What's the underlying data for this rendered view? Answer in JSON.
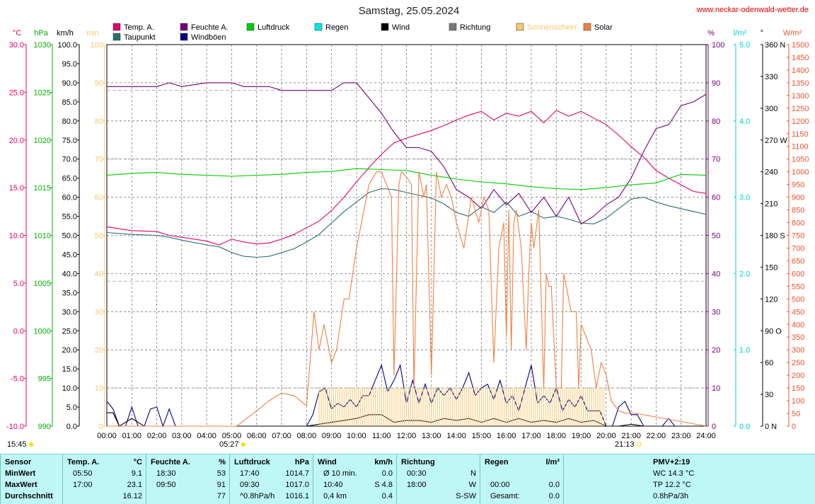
{
  "title": "Samstag, 25.05.2024",
  "website": "www.neckar-odenwald-wetter.de",
  "time_labels": {
    "now": "15:45",
    "sunrise": "05:27",
    "sunset": "21:13"
  },
  "colors": {
    "temp": "#e0006e",
    "dew": "#2a6d6d",
    "hum": "#770077",
    "gust": "#00008b",
    "press": "#00cc00",
    "rain": "#00e6e6",
    "wind": "#000000",
    "dir": "#777777",
    "sun": "#f5c870",
    "solar": "#f08040",
    "min": "#f5c870"
  },
  "legend": [
    {
      "label": "Temp. A.",
      "color": "#e0006e"
    },
    {
      "label": "Taupunkt",
      "color": "#2a6d6d"
    },
    {
      "label": "Feuchte A.",
      "color": "#770077"
    },
    {
      "label": "Windböen",
      "color": "#00008b"
    },
    {
      "label": "Luftdruck",
      "color": "#00cc00"
    },
    {
      "label": "Regen",
      "color": "#00e6e6"
    },
    {
      "label": "Wind",
      "color": "#000000"
    },
    {
      "label": "Richtung",
      "color": "#777777"
    },
    {
      "label": "Sonnenschein",
      "color": "#f5c870"
    },
    {
      "label": "Solar",
      "color": "#f08040"
    }
  ],
  "chart_data": {
    "type": "line",
    "title": "Samstag, 25.05.2024",
    "x_ticks": [
      "00:00",
      "01:00",
      "02:00",
      "03:00",
      "04:00",
      "05:00",
      "06:00",
      "07:00",
      "08:00",
      "09:00",
      "10:00",
      "11:00",
      "12:00",
      "13:00",
      "14:00",
      "15:00",
      "16:00",
      "17:00",
      "18:00",
      "19:00",
      "20:00",
      "21:00",
      "22:00",
      "23:00",
      "24:00"
    ],
    "xlim": [
      0,
      24
    ],
    "axes": {
      "temp": {
        "unit": "°C",
        "range": [
          -10,
          30
        ],
        "ticks": [
          "30.0",
          "25.0",
          "20.0",
          "15.0",
          "10.0",
          "5.0",
          "0.0",
          "-5.0",
          "-10.0"
        ]
      },
      "press": {
        "unit": "hPa",
        "range": [
          990,
          1030
        ],
        "ticks": [
          "1030",
          "1025",
          "1020",
          "1015",
          "1010",
          "1005",
          "1000",
          "995",
          "990"
        ]
      },
      "wind": {
        "unit": "km/h",
        "range": [
          0,
          100
        ],
        "ticks": [
          "100.0",
          "95.0",
          "90.0",
          "85.0",
          "80.0",
          "75.0",
          "70.0",
          "65.0",
          "60.0",
          "55.0",
          "50.0",
          "45.0",
          "40.0",
          "35.0",
          "30.0",
          "25.0",
          "20.0",
          "15.0",
          "10.0",
          "5.0",
          "0.0"
        ]
      },
      "min": {
        "unit": "min",
        "range": [
          0,
          100
        ],
        "ticks": [
          "100",
          "90",
          "80",
          "70",
          "60",
          "50",
          "40",
          "30",
          "20",
          "10",
          "0"
        ]
      },
      "hum": {
        "unit": "%",
        "range": [
          0,
          100
        ],
        "ticks": [
          "100",
          "90",
          "80",
          "70",
          "60",
          "50",
          "40",
          "30",
          "20",
          "10",
          "0"
        ]
      },
      "rain": {
        "unit": "l/m²",
        "range": [
          0,
          5
        ],
        "ticks": [
          "5.0",
          "4.0",
          "3.0",
          "2.0",
          "1.0",
          "0.0"
        ]
      },
      "dir": {
        "unit": "°",
        "range": [
          0,
          360
        ],
        "ticks": [
          "360 N",
          "330",
          "300",
          "270 W",
          "240",
          "210",
          "180 S",
          "150",
          "120",
          "90 O",
          "60",
          "30",
          "0 N"
        ]
      },
      "solar": {
        "unit": "W/m²",
        "range": [
          0,
          1500
        ],
        "ticks": [
          "1500",
          "1450",
          "1400",
          "1350",
          "1300",
          "1250",
          "1200",
          "1150",
          "1100",
          "1050",
          "1000",
          "950",
          "900",
          "850",
          "800",
          "750",
          "700",
          "650",
          "600",
          "550",
          "500",
          "450",
          "400",
          "350",
          "300",
          "250",
          "200",
          "150",
          "100",
          "50",
          "0"
        ]
      }
    },
    "series": [
      {
        "name": "Temp. A.",
        "axis": "temp",
        "x": [
          0,
          1,
          2,
          2.5,
          3,
          4,
          4.5,
          5,
          5.5,
          6,
          6.5,
          7,
          7.5,
          8,
          8.5,
          9,
          9.5,
          10,
          10.5,
          11,
          11.5,
          12,
          12.5,
          13,
          13.5,
          14,
          14.5,
          15,
          15.5,
          16,
          16.5,
          17,
          17.5,
          18,
          18.5,
          19,
          19.5,
          20,
          20.5,
          21,
          21.5,
          22,
          22.5,
          23,
          23.5,
          24
        ],
        "y": [
          10.9,
          10.5,
          10.4,
          10.0,
          9.8,
          9.4,
          9.0,
          9.6,
          9.3,
          9.1,
          9.2,
          9.6,
          10.1,
          10.8,
          11.5,
          12.6,
          14.0,
          15.6,
          17.1,
          18.5,
          19.7,
          20.2,
          20.6,
          21.0,
          21.5,
          22.1,
          22.6,
          23.0,
          22.1,
          22.8,
          22.5,
          23.0,
          21.8,
          23.1,
          22.5,
          23.0,
          22.3,
          21.6,
          20.5,
          19.3,
          18.2,
          16.8,
          16.0,
          15.3,
          14.6,
          14.4
        ]
      },
      {
        "name": "Taupunkt",
        "axis": "temp",
        "x": [
          0,
          1,
          2,
          2.5,
          3,
          4,
          4.5,
          5,
          5.5,
          6,
          6.5,
          7,
          7.5,
          8,
          8.5,
          9,
          9.5,
          10,
          10.5,
          11,
          11.5,
          12,
          12.5,
          13,
          13.5,
          14,
          14.5,
          15,
          15.5,
          16,
          16.5,
          17,
          17.5,
          18,
          18.5,
          19,
          19.5,
          20,
          20.5,
          21,
          21.5,
          22,
          22.5,
          23,
          23.5,
          24
        ],
        "y": [
          10.3,
          10.1,
          10.0,
          9.8,
          9.5,
          9.0,
          8.8,
          8.2,
          7.8,
          7.7,
          7.8,
          8.2,
          8.6,
          9.3,
          10.1,
          11.3,
          12.5,
          13.5,
          14.5,
          14.9,
          14.8,
          14.5,
          14.2,
          13.9,
          13.3,
          12.4,
          12.0,
          13.0,
          12.4,
          13.5,
          12.0,
          12.5,
          11.8,
          12.0,
          11.7,
          11.3,
          11.2,
          11.8,
          12.8,
          13.8,
          14.0,
          13.5,
          13.1,
          12.8,
          12.5,
          12.2
        ]
      },
      {
        "name": "Feuchte A.",
        "axis": "hum",
        "x": [
          0,
          1,
          2,
          2.5,
          3,
          4,
          4.5,
          5,
          5.5,
          6,
          6.5,
          7,
          7.5,
          8,
          8.5,
          9,
          9.5,
          10,
          10.5,
          11,
          11.5,
          12,
          12.5,
          13,
          13.5,
          14,
          14.5,
          15,
          15.5,
          16,
          16.5,
          17,
          17.5,
          18,
          18.5,
          19,
          19.5,
          20,
          20.5,
          21,
          21.5,
          22,
          22.5,
          23,
          23.5,
          24
        ],
        "y": [
          89,
          89,
          89,
          90,
          89,
          90,
          90,
          90,
          89,
          89,
          89,
          88,
          88,
          88,
          88,
          88,
          90,
          90,
          86,
          82,
          77,
          73,
          73,
          72,
          68,
          62,
          60,
          57,
          62,
          58,
          61,
          56,
          60,
          55,
          60,
          53,
          55,
          58,
          60,
          65,
          72,
          78,
          79,
          84,
          85,
          87
        ]
      },
      {
        "name": "Luftdruck",
        "axis": "press",
        "x": [
          0,
          1,
          2,
          3,
          4,
          5,
          6,
          7,
          8,
          9,
          10,
          11,
          12,
          13,
          14,
          15,
          16,
          17,
          18,
          19,
          20,
          21,
          22,
          23,
          24
        ],
        "y": [
          1016.3,
          1016.5,
          1016.6,
          1016.4,
          1016.3,
          1016.2,
          1016.3,
          1016.4,
          1016.6,
          1016.7,
          1017.0,
          1016.9,
          1016.8,
          1016.3,
          1015.9,
          1015.6,
          1015.4,
          1015.1,
          1014.9,
          1014.8,
          1015.0,
          1015.3,
          1015.5,
          1016.4,
          1016.3
        ]
      },
      {
        "name": "Windböen",
        "axis": "wind",
        "x": [
          0,
          0.25,
          0.5,
          0.75,
          1,
          1.25,
          1.5,
          1.75,
          2,
          2.25,
          2.5,
          2.75,
          3,
          8,
          8.25,
          8.5,
          8.75,
          9,
          9.25,
          9.5,
          9.75,
          10,
          10.25,
          10.5,
          10.75,
          11,
          11.25,
          11.5,
          11.75,
          12,
          12.25,
          12.5,
          12.75,
          13,
          13.25,
          13.5,
          13.75,
          14,
          14.25,
          14.5,
          14.75,
          15,
          15.25,
          15.5,
          15.75,
          16,
          16.25,
          16.5,
          16.75,
          17,
          17.25,
          17.5,
          17.75,
          18,
          18.25,
          18.5,
          18.75,
          19,
          19.25,
          19.5,
          19.75,
          20,
          20.25,
          20.5,
          20.75,
          21,
          21.25,
          21.5,
          21.75,
          22,
          22.25,
          22.5,
          22.75,
          23,
          23.25,
          23.5,
          23.75,
          24
        ],
        "y": [
          6.5,
          4.5,
          0,
          0,
          5,
          0,
          0,
          4.5,
          5,
          0,
          4.5,
          0,
          0,
          0,
          3,
          9,
          10,
          4.5,
          6,
          5,
          7,
          5,
          8,
          8,
          12,
          16,
          9,
          12,
          16,
          6,
          12,
          6,
          11,
          6,
          10,
          8,
          10,
          7,
          10,
          14,
          8,
          10,
          11,
          7,
          12,
          6,
          8,
          4,
          10,
          16,
          6,
          8,
          6,
          10,
          4,
          7,
          5,
          8,
          4,
          4,
          4,
          0,
          0,
          5,
          6.5,
          3,
          3,
          0,
          0,
          0,
          0,
          2,
          0,
          0,
          0,
          0,
          0,
          0
        ]
      },
      {
        "name": "Wind",
        "axis": "wind",
        "x": [
          0,
          0.25,
          0.5,
          1,
          1.5,
          8,
          9,
          9.5,
          10,
          10.5,
          11,
          11.5,
          12,
          12.5,
          13,
          13.5,
          14,
          14.5,
          15,
          15.5,
          16,
          16.5,
          17,
          17.5,
          18,
          18.5,
          19,
          19.5,
          20,
          20.5,
          21,
          21.5,
          24
        ],
        "y": [
          3.5,
          3.5,
          0,
          2,
          0,
          0,
          1,
          1.5,
          2,
          3,
          3,
          1,
          1.5,
          1.5,
          1,
          2,
          1.5,
          2,
          1,
          2,
          1,
          2,
          1,
          1.5,
          1,
          2,
          1,
          1.5,
          0,
          0,
          0.5,
          0,
          0
        ]
      },
      {
        "name": "Solar",
        "axis": "solar",
        "x": [
          0,
          5.2,
          5.6,
          6.0,
          6.5,
          7.0,
          7.5,
          8.0,
          8.3,
          8.5,
          8.7,
          9.0,
          9.2,
          9.5,
          9.7,
          10.0,
          10.3,
          10.5,
          10.8,
          11.0,
          11.2,
          11.4,
          11.5,
          11.7,
          11.8,
          12.0,
          12.2,
          12.3,
          12.5,
          12.7,
          12.8,
          13.0,
          13.2,
          13.4,
          13.6,
          13.8,
          14.0,
          14.3,
          14.6,
          14.9,
          15.1,
          15.3,
          15.5,
          15.7,
          15.9,
          16.0,
          16.1,
          16.2,
          16.3,
          16.4,
          16.6,
          16.8,
          16.9,
          17.0,
          17.1,
          17.3,
          17.5,
          17.6,
          17.7,
          17.8,
          18.0,
          18.2,
          18.3,
          18.4,
          18.6,
          18.8,
          18.9,
          19.0,
          19.2,
          19.4,
          19.6,
          19.8,
          20.0,
          20.2,
          20.5,
          20.8,
          21.0,
          21.2,
          24
        ],
        "y": [
          0,
          0,
          30,
          60,
          100,
          130,
          120,
          80,
          450,
          300,
          400,
          250,
          300,
          500,
          500,
          700,
          850,
          950,
          1000,
          1000,
          950,
          900,
          200,
          950,
          1000,
          980,
          950,
          150,
          1000,
          900,
          950,
          200,
          1000,
          900,
          950,
          900,
          800,
          700,
          900,
          800,
          900,
          850,
          250,
          700,
          800,
          350,
          850,
          300,
          800,
          850,
          700,
          300,
          600,
          800,
          700,
          850,
          150,
          600,
          550,
          550,
          150,
          150,
          600,
          550,
          450,
          450,
          150,
          400,
          350,
          300,
          150,
          250,
          200,
          100,
          60,
          50,
          50,
          50,
          0
        ]
      },
      {
        "name": "Sonnenschein",
        "axis": "min",
        "x": [
          8.5,
          9.0,
          9.5,
          10.0,
          10.5,
          11.0,
          11.5,
          12.0,
          12.5,
          13.0,
          13.5,
          14.0,
          14.5,
          15.0,
          15.5,
          16.0,
          16.5,
          17.0,
          17.5,
          18.0,
          18.5,
          19.0,
          19.5
        ],
        "y": [
          10,
          10,
          10,
          10,
          10,
          10,
          10,
          10,
          10,
          10,
          10,
          10,
          10,
          10,
          10,
          10,
          10,
          10,
          10,
          10,
          10,
          10,
          10
        ]
      }
    ]
  },
  "table": {
    "columns": [
      {
        "header": "Sensor",
        "unit": "",
        "rows": [
          [
            "MinWert",
            ""
          ],
          [
            "MaxWert",
            ""
          ],
          [
            "Durchschnitt",
            ""
          ]
        ]
      },
      {
        "header": "Temp. A.",
        "unit": "°C",
        "rows": [
          [
            "05:50",
            "9.1"
          ],
          [
            "17:00",
            "23.1"
          ],
          [
            "",
            "16.12"
          ]
        ]
      },
      {
        "header": "Feuchte A.",
        "unit": "%",
        "rows": [
          [
            "18:30",
            "53"
          ],
          [
            "09:50",
            "91"
          ],
          [
            "",
            "77"
          ]
        ]
      },
      {
        "header": "Luftdruck",
        "unit": "hPa",
        "rows": [
          [
            "17:40",
            "1014.7"
          ],
          [
            "09:30",
            "1017.0"
          ],
          [
            "^0.8hPa/h",
            "1016.1"
          ]
        ]
      },
      {
        "header": "Wind",
        "unit": "km/h",
        "rows": [
          [
            "Ø 10 min.",
            "0.0"
          ],
          [
            "10:40",
            "S 4.8"
          ],
          [
            "0,4 km",
            "0.4"
          ]
        ]
      },
      {
        "header": "Richtung",
        "unit": "",
        "rows": [
          [
            "00:30",
            "N"
          ],
          [
            "18:00",
            "W"
          ],
          [
            "",
            "S-SW"
          ]
        ]
      },
      {
        "header": "Regen",
        "unit": "l/m²",
        "rows": [
          [
            "",
            ""
          ],
          [
            "00:00",
            "0.0"
          ],
          [
            "Gesamt:",
            "0.0"
          ]
        ]
      },
      {
        "header": "PMV+2:19",
        "unit": "",
        "rows": [
          [
            "WC 14.3 °C",
            ""
          ],
          [
            "TP 12.2 °C",
            ""
          ],
          [
            "0.8hPa/3h",
            ""
          ]
        ]
      }
    ]
  }
}
